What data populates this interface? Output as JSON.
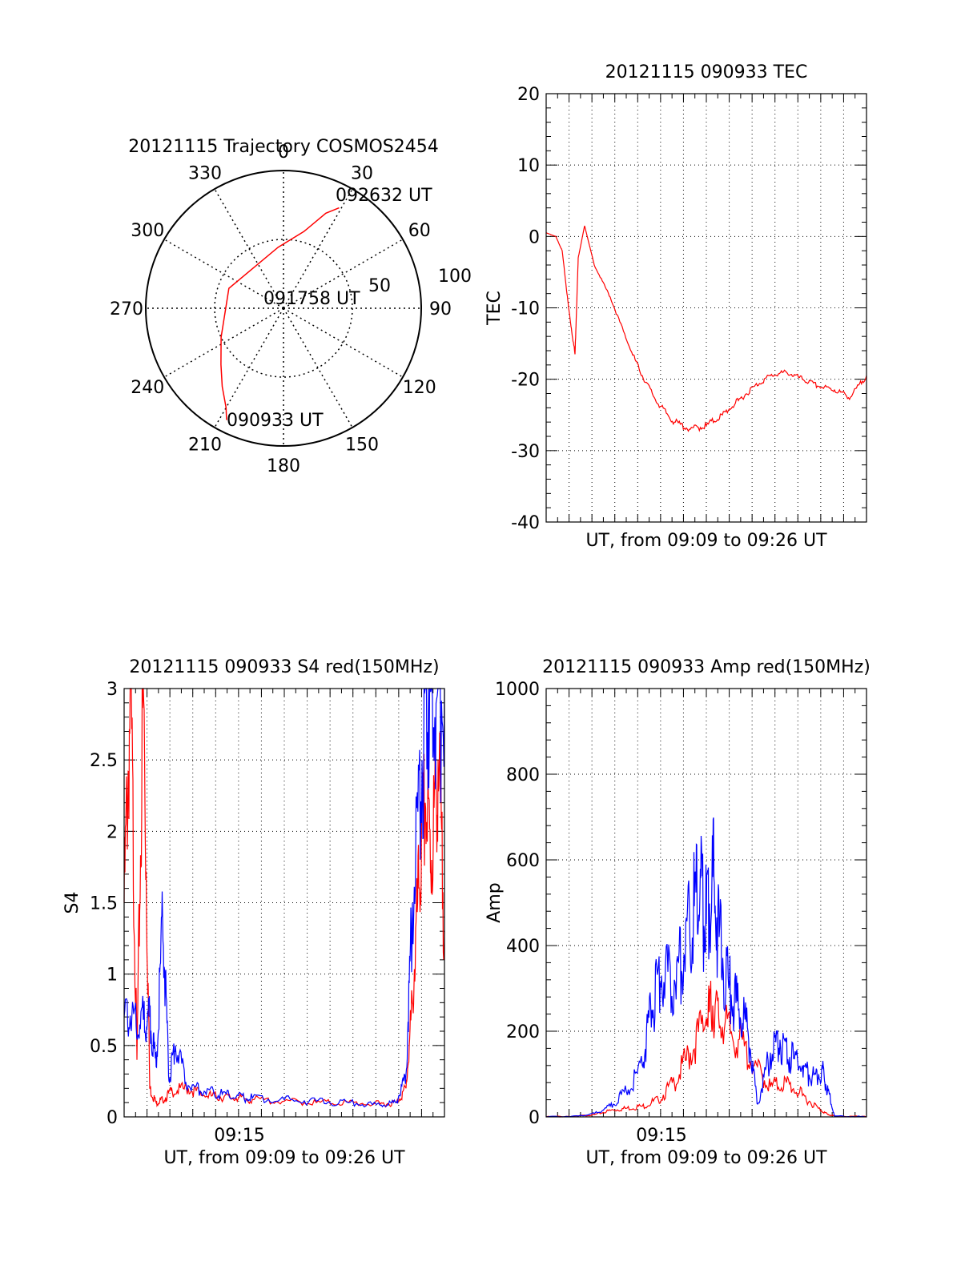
{
  "chart_data": [
    {
      "type": "polar",
      "title": "20121115 Trajectory COSMOS2454",
      "angle_labels": [
        "0",
        "30",
        "60",
        "90",
        "120",
        "150",
        "180",
        "210",
        "240",
        "270",
        "300",
        "330"
      ],
      "radius_labels": [
        "50",
        "100"
      ],
      "annotations": {
        "start": "090933 UT",
        "mid": "091758 UT",
        "end": "092632 UT"
      },
      "series": [
        {
          "color": "#ff0000",
          "azimuth": [
            207,
            210,
            218,
            228,
            245,
            290,
            355,
            15,
            24,
            29
          ],
          "elevation": [
            8,
            15,
            25,
            35,
            45,
            52,
            50,
            38,
            22,
            15
          ]
        }
      ]
    },
    {
      "type": "line",
      "title": "20121115 090933 TEC",
      "xlabel": "UT, from 09:09 to 09:26 UT",
      "ylabel": "TEC",
      "ylim": [
        -40,
        20
      ],
      "yticks": [
        "20",
        "10",
        "0",
        "-10",
        "-20",
        "-30",
        "-40"
      ],
      "grid": true,
      "series": [
        {
          "color": "#ff0000",
          "t": [
            0.0,
            0.03,
            0.05,
            0.07,
            0.09,
            0.1,
            0.12,
            0.15,
            0.2,
            0.26,
            0.3,
            0.35,
            0.4,
            0.45,
            0.5,
            0.55,
            0.6,
            0.65,
            0.7,
            0.75,
            0.8,
            0.85,
            0.9,
            0.95,
            1.0
          ],
          "value": [
            0.5,
            0.0,
            -2.0,
            -10.0,
            -16.5,
            -3.0,
            1.5,
            -4.0,
            -8.5,
            -15.5,
            -19.5,
            -23.5,
            -26.0,
            -27.0,
            -26.5,
            -25.0,
            -23.0,
            -21.0,
            -19.5,
            -19.0,
            -20.0,
            -21.0,
            -21.5,
            -22.5,
            -19.5
          ]
        }
      ]
    },
    {
      "type": "line",
      "title": "20121115 090933 S4 red(150MHz)",
      "xlabel": "UT, from 09:09 to 09:26 UT",
      "ylabel": "S4",
      "ylim": [
        0,
        3
      ],
      "yticks": [
        "3",
        "2.5",
        "2",
        "1.5",
        "1",
        "0.5",
        "0"
      ],
      "xtick_label": "09:15",
      "grid": true,
      "series": [
        {
          "color": "#ff0000",
          "t": [
            0.0,
            0.02,
            0.04,
            0.06,
            0.08,
            0.1,
            0.12,
            0.15,
            0.2,
            0.25,
            0.3,
            0.35,
            0.4,
            0.5,
            0.6,
            0.7,
            0.8,
            0.85,
            0.88,
            0.9,
            0.92,
            0.94,
            0.96,
            0.98,
            1.0
          ],
          "value": [
            1.5,
            3.0,
            0.4,
            3.0,
            0.2,
            0.1,
            0.12,
            0.18,
            0.2,
            0.15,
            0.14,
            0.13,
            0.12,
            0.11,
            0.1,
            0.1,
            0.09,
            0.1,
            0.2,
            0.8,
            1.6,
            2.2,
            1.8,
            2.5,
            1.3
          ]
        },
        {
          "color": "#0000ff",
          "t": [
            0.0,
            0.03,
            0.06,
            0.08,
            0.1,
            0.12,
            0.14,
            0.16,
            0.2,
            0.25,
            0.3,
            0.35,
            0.4,
            0.5,
            0.6,
            0.7,
            0.8,
            0.85,
            0.88,
            0.9,
            0.93,
            0.95,
            0.97,
            1.0
          ],
          "value": [
            0.7,
            0.72,
            0.68,
            0.7,
            0.35,
            1.4,
            0.25,
            0.5,
            0.22,
            0.18,
            0.16,
            0.14,
            0.13,
            0.12,
            0.11,
            0.1,
            0.08,
            0.1,
            0.3,
            1.5,
            2.5,
            3.0,
            2.8,
            3.0
          ]
        }
      ]
    },
    {
      "type": "line",
      "title": "20121115 090933 Amp red(150MHz)",
      "xlabel": "UT, from 09:09 to 09:26 UT",
      "ylabel": "Amp",
      "ylim": [
        0,
        1000
      ],
      "yticks": [
        "1000",
        "800",
        "600",
        "400",
        "200",
        "0"
      ],
      "xtick_label": "09:15",
      "grid": true,
      "series": [
        {
          "color": "#ff0000",
          "t": [
            0.0,
            0.1,
            0.15,
            0.2,
            0.25,
            0.3,
            0.35,
            0.4,
            0.45,
            0.5,
            0.52,
            0.55,
            0.6,
            0.65,
            0.7,
            0.75,
            0.8,
            0.85,
            0.88,
            0.9,
            1.0
          ],
          "value": [
            0,
            2,
            5,
            15,
            20,
            25,
            40,
            80,
            150,
            230,
            260,
            210,
            180,
            120,
            70,
            80,
            50,
            20,
            5,
            2,
            0
          ]
        },
        {
          "color": "#0000ff",
          "t": [
            0.0,
            0.1,
            0.15,
            0.2,
            0.25,
            0.3,
            0.33,
            0.36,
            0.4,
            0.43,
            0.46,
            0.48,
            0.5,
            0.52,
            0.54,
            0.57,
            0.6,
            0.63,
            0.66,
            0.7,
            0.73,
            0.76,
            0.8,
            0.83,
            0.86,
            0.88,
            0.9,
            1.0
          ],
          "value": [
            0,
            2,
            8,
            25,
            60,
            120,
            250,
            330,
            320,
            380,
            480,
            520,
            450,
            560,
            420,
            300,
            250,
            200,
            30,
            150,
            180,
            140,
            120,
            90,
            110,
            60,
            2,
            0
          ]
        }
      ]
    }
  ]
}
